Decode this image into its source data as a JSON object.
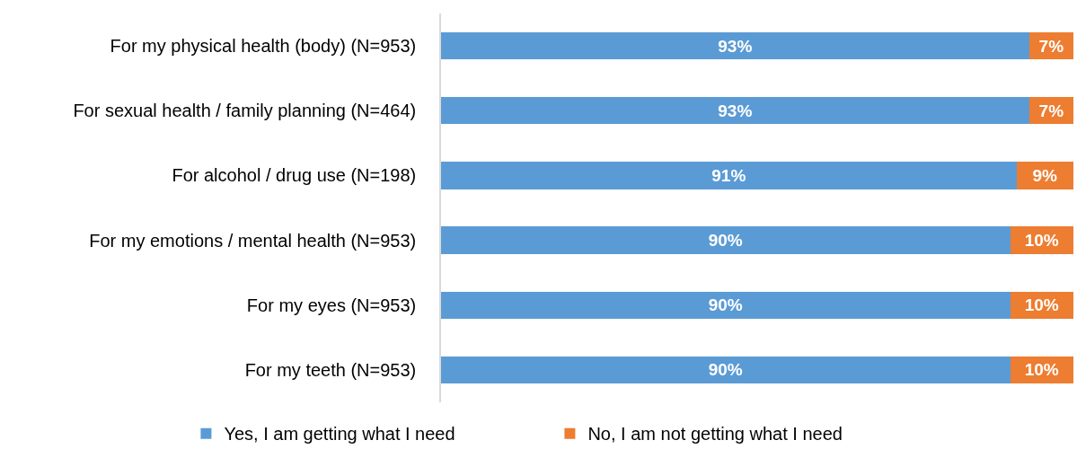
{
  "chart_data": {
    "type": "bar",
    "orientation": "horizontal",
    "stacked": true,
    "categories": [
      "For my physical health (body) (N=953)",
      "For sexual health / family planning (N=464)",
      "For alcohol / drug use (N=198)",
      "For my emotions / mental health (N=953)",
      "For my eyes (N=953)",
      "For my teeth (N=953)"
    ],
    "series": [
      {
        "name": "Yes, I am getting what I need",
        "color": "#5b9bd5",
        "values": [
          93,
          93,
          91,
          90,
          90,
          90
        ],
        "value_labels": [
          "93%",
          "93%",
          "91%",
          "90%",
          "90%",
          "90%"
        ]
      },
      {
        "name": "No, I am not getting what I need",
        "color": "#ed7d31",
        "values": [
          7,
          7,
          9,
          10,
          10,
          10
        ],
        "value_labels": [
          "7%",
          "7%",
          "9%",
          "10%",
          "10%",
          "10%"
        ]
      }
    ],
    "legend": "bottom",
    "tick_labels": "y"
  }
}
